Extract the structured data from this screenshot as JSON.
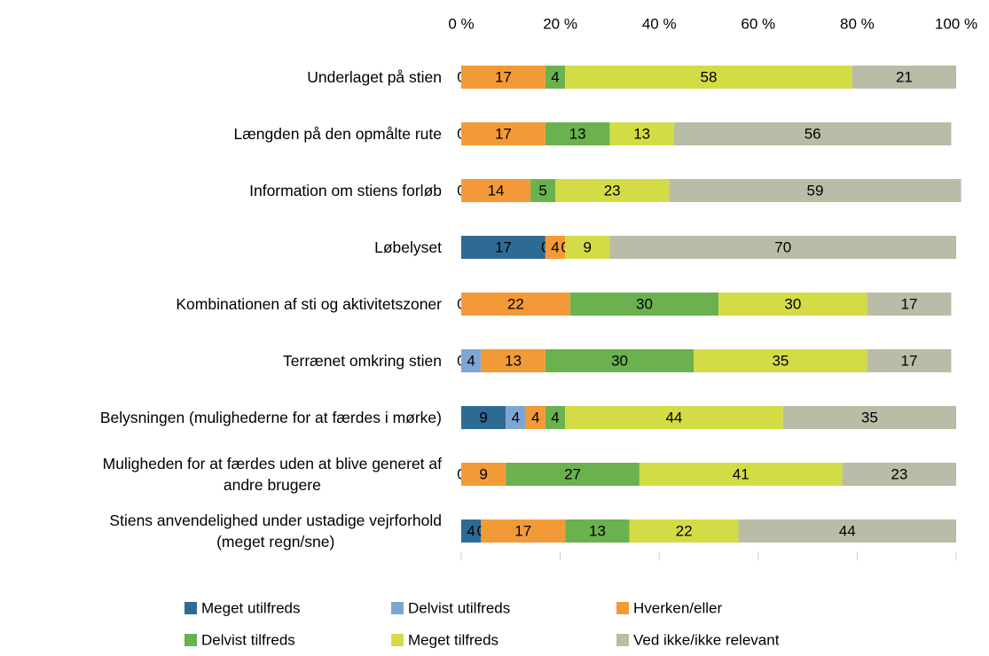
{
  "chart_data": {
    "type": "stacked-barh",
    "categories": [
      "Underlaget på stien",
      "Længden på den opmålte rute",
      "Information om stiens forløb",
      "Løbelyset",
      "Kombinationen af sti og aktivitetszoner",
      "Terrænet omkring stien",
      "Belysningen (mulighederne for at færdes i mørke)",
      "Muligheden for at færdes uden at blive generet af\nandre brugere",
      "Stiens anvendelighed under ustadige vejrforhold\n(meget regn/sne)"
    ],
    "series": [
      {
        "name": "Meget utilfreds",
        "color": "#2e6b94",
        "values": [
          0,
          0,
          0,
          17,
          0,
          0,
          9,
          0,
          4
        ]
      },
      {
        "name": "Delvist utilfreds",
        "color": "#7ea6d3",
        "values": [
          null,
          null,
          null,
          0,
          null,
          4,
          4,
          null,
          0
        ]
      },
      {
        "name": "Hverken/eller",
        "color": "#f39a38",
        "values": [
          17,
          17,
          14,
          4,
          22,
          13,
          4,
          9,
          17
        ]
      },
      {
        "name": "Delvist tilfreds",
        "color": "#6bb14f",
        "values": [
          4,
          13,
          5,
          0,
          30,
          30,
          4,
          27,
          13
        ]
      },
      {
        "name": "Meget tilfreds",
        "color": "#d4dc45",
        "values": [
          58,
          13,
          23,
          9,
          30,
          35,
          44,
          41,
          22
        ]
      },
      {
        "name": "Ved ikke/ikke relevant",
        "color": "#b9bca6",
        "values": [
          21,
          56,
          59,
          70,
          17,
          17,
          35,
          23,
          44
        ]
      }
    ],
    "xlim": [
      0,
      100
    ],
    "xticks": [
      {
        "value": 0,
        "label": "0 %"
      },
      {
        "value": 20,
        "label": "20 %"
      },
      {
        "value": 40,
        "label": "40 %"
      },
      {
        "value": 60,
        "label": "60 %"
      },
      {
        "value": 80,
        "label": "80 %"
      },
      {
        "value": 100,
        "label": "100 %"
      }
    ]
  }
}
